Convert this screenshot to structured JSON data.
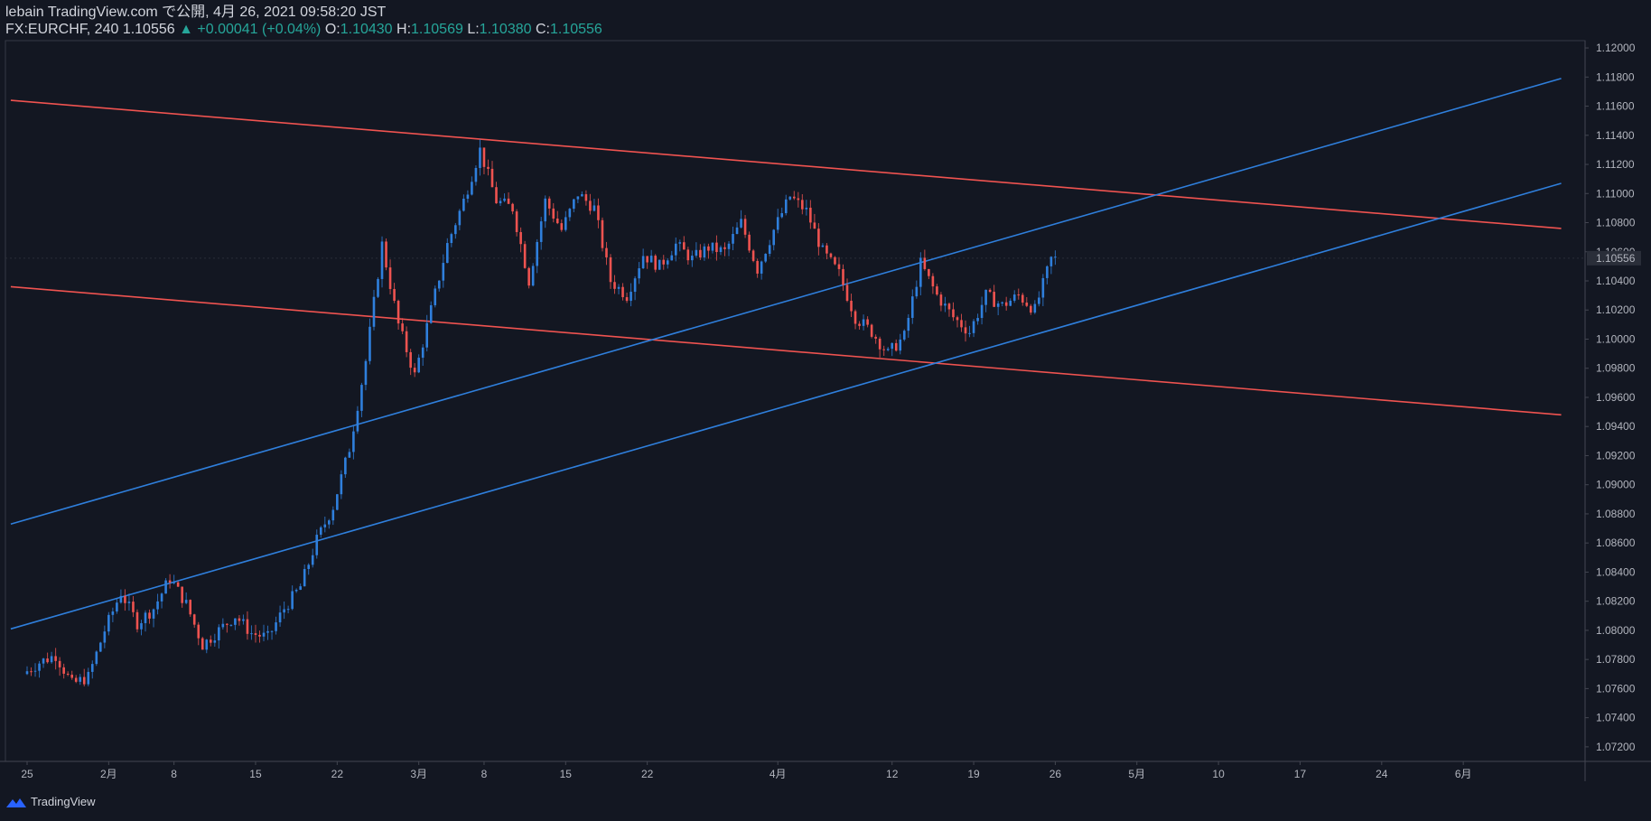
{
  "header": {
    "line1": "lebain TradingView.com で公開, 4月 26, 2021 09:58:20 JST",
    "symbol": "FX:EURCHF, 240 1.10556",
    "change": "▲ +0.00041 (+0.04%)",
    "o_label": "O:",
    "o_value": "1.10430",
    "h_label": "H:",
    "h_value": "1.10569",
    "l_label": "L:",
    "l_value": "1.10380",
    "c_label": "C:",
    "c_value": "1.10556"
  },
  "footer": {
    "brand": "TradingView"
  },
  "colors": {
    "background": "#131722",
    "up": "#2f7fdc",
    "down": "#ef5350",
    "grid": "#2a2e39",
    "text": "#b2b5be"
  },
  "chart_data": {
    "type": "candlestick",
    "symbol": "FX:EURCHF",
    "interval": "240",
    "ylim": [
      1.071,
      1.1205
    ],
    "y_ticks": [
      "1.12000",
      "1.11800",
      "1.11600",
      "1.11400",
      "1.11200",
      "1.11000",
      "1.10800",
      "1.10600",
      "1.10400",
      "1.10200",
      "1.10000",
      "1.09800",
      "1.09600",
      "1.09400",
      "1.09200",
      "1.09000",
      "1.08800",
      "1.08600",
      "1.08400",
      "1.08200",
      "1.08000",
      "1.07800",
      "1.07600",
      "1.07400",
      "1.07200"
    ],
    "last_price_label": "1.10556",
    "x_ticks": [
      {
        "label": "25",
        "i": 0
      },
      {
        "label": "2月",
        "i": 5
      },
      {
        "label": "8",
        "i": 9
      },
      {
        "label": "15",
        "i": 14
      },
      {
        "label": "22",
        "i": 19
      },
      {
        "label": "3月",
        "i": 24
      },
      {
        "label": "8",
        "i": 28
      },
      {
        "label": "15",
        "i": 33
      },
      {
        "label": "22",
        "i": 38
      },
      {
        "label": "4月",
        "i": 46
      },
      {
        "label": "12",
        "i": 53
      },
      {
        "label": "19",
        "i": 58
      },
      {
        "label": "26",
        "i": 63
      },
      {
        "label": "5月",
        "i": 68
      },
      {
        "label": "10",
        "i": 73
      },
      {
        "label": "17",
        "i": 78
      },
      {
        "label": "24",
        "i": 83
      },
      {
        "label": "6月",
        "i": 88
      }
    ],
    "path": [
      [
        0,
        1.077
      ],
      [
        1,
        1.0778
      ],
      [
        2,
        1.0783
      ],
      [
        3,
        1.0763
      ],
      [
        4,
        1.0768
      ],
      [
        5,
        1.08
      ],
      [
        6,
        1.0826
      ],
      [
        7,
        1.0805
      ],
      [
        8,
        1.0815
      ],
      [
        9,
        1.0836
      ],
      [
        10,
        1.0818
      ],
      [
        11,
        1.079
      ],
      [
        12,
        1.08
      ],
      [
        13,
        1.081
      ],
      [
        14,
        1.0798
      ],
      [
        15,
        1.0795
      ],
      [
        16,
        1.0815
      ],
      [
        17,
        1.083
      ],
      [
        18,
        1.0862
      ],
      [
        19,
        1.0885
      ],
      [
        20,
        1.0925
      ],
      [
        21,
        1.0985
      ],
      [
        22,
        1.1065
      ],
      [
        23,
        1.101
      ],
      [
        24,
        1.0975
      ],
      [
        25,
        1.102
      ],
      [
        26,
        1.1065
      ],
      [
        27,
        1.1095
      ],
      [
        28,
        1.113
      ],
      [
        29,
        1.1095
      ],
      [
        30,
        1.109
      ],
      [
        31,
        1.104
      ],
      [
        32,
        1.1095
      ],
      [
        33,
        1.1075
      ],
      [
        34,
        1.11
      ],
      [
        35,
        1.109
      ],
      [
        36,
        1.104
      ],
      [
        37,
        1.103
      ],
      [
        38,
        1.1058
      ],
      [
        39,
        1.105
      ],
      [
        40,
        1.1065
      ],
      [
        41,
        1.1055
      ],
      [
        42,
        1.1063
      ],
      [
        43,
        1.106
      ],
      [
        44,
        1.108
      ],
      [
        45,
        1.1048
      ],
      [
        46,
        1.1075
      ],
      [
        47,
        1.1098
      ],
      [
        48,
        1.1088
      ],
      [
        49,
        1.106
      ],
      [
        50,
        1.1045
      ],
      [
        51,
        1.1015
      ],
      [
        52,
        1.1005
      ],
      [
        53,
        1.099
      ],
      [
        54,
        1.1002
      ],
      [
        55,
        1.1052
      ],
      [
        56,
        1.103
      ],
      [
        57,
        1.1015
      ],
      [
        58,
        1.1005
      ],
      [
        59,
        1.103
      ],
      [
        60,
        1.1023
      ],
      [
        61,
        1.103
      ],
      [
        62,
        1.102
      ],
      [
        63,
        1.1055
      ]
    ],
    "trendlines": [
      {
        "color": "#ef5350",
        "from": [
          -1,
          1.1164
        ],
        "to": [
          94,
          1.1076
        ]
      },
      {
        "color": "#ef5350",
        "from": [
          -1,
          1.1036
        ],
        "to": [
          94,
          1.0948
        ]
      },
      {
        "color": "#2f7fdc",
        "from": [
          -1,
          1.0873
        ],
        "to": [
          94,
          1.1179
        ]
      },
      {
        "color": "#2f7fdc",
        "from": [
          -1,
          1.0801
        ],
        "to": [
          94,
          1.1107
        ]
      }
    ]
  }
}
